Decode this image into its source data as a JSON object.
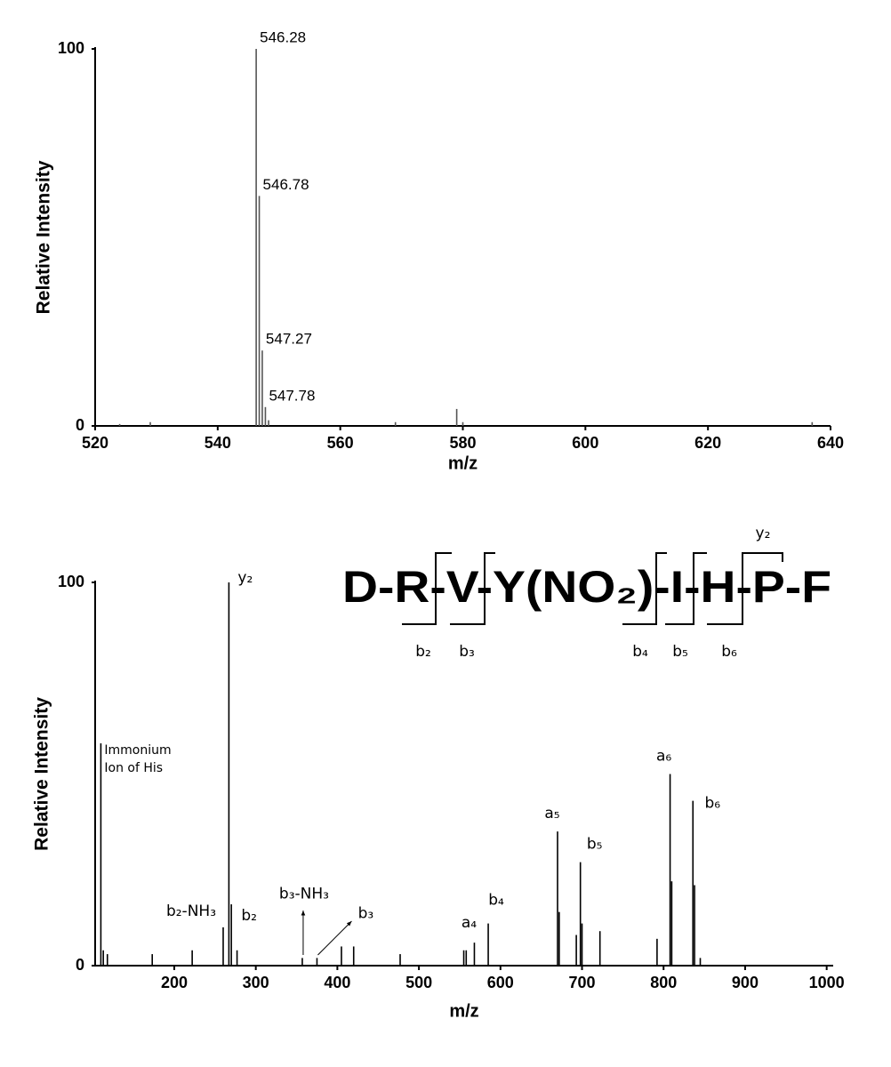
{
  "chart_data": [
    {
      "type": "stem",
      "ylabel": "Relative Intensity",
      "xlabel": "m/z",
      "color": "#555555",
      "x": [
        524,
        529,
        546.28,
        546.78,
        547.27,
        547.78,
        548.3,
        569,
        579,
        580,
        637
      ],
      "values": [
        0.5,
        1,
        100,
        61,
        20,
        5,
        1.5,
        1,
        4.5,
        1,
        1
      ],
      "peak_labels": [
        null,
        null,
        "546.28",
        "546.78",
        "547.27",
        "547.78",
        null,
        null,
        null,
        null,
        null
      ],
      "xlim": [
        520,
        640
      ],
      "xticks": [
        520,
        540,
        560,
        580,
        600,
        620,
        640
      ],
      "ylim": [
        0,
        100
      ],
      "yticks": [
        0,
        100
      ]
    },
    {
      "type": "stem",
      "ylabel": "Relative Intensity",
      "xlabel": "m/z",
      "color": "#000000",
      "x": [
        110,
        113,
        118,
        173,
        222,
        260,
        267,
        270,
        277,
        357,
        375,
        405,
        420,
        477,
        555,
        558,
        568,
        585,
        670,
        672,
        693,
        698,
        700,
        722,
        792,
        808,
        810,
        836,
        838,
        845
      ],
      "values": [
        58,
        4,
        3,
        3,
        4,
        10,
        100,
        16,
        4,
        2,
        2,
        5,
        5,
        3,
        4,
        4,
        6,
        11,
        35,
        14,
        8,
        27,
        11,
        9,
        7,
        50,
        22,
        43,
        21,
        2
      ],
      "peak_labels": [
        [
          "Immonium",
          "Ion of His"
        ],
        null,
        null,
        null,
        null,
        "b₂-NH₃",
        "y₂",
        "b₂",
        null,
        "b₃-NH₃",
        "b₃",
        null,
        null,
        null,
        null,
        null,
        "a₄",
        "b₄",
        "a₅",
        null,
        null,
        "b₅",
        null,
        null,
        null,
        "a₆",
        null,
        "b₆",
        null,
        null
      ],
      "xlim": [
        103,
        1008
      ],
      "xticks": [
        200,
        300,
        400,
        500,
        600,
        700,
        800,
        900,
        1000
      ],
      "ylim": [
        0,
        100
      ],
      "yticks": [
        0,
        100
      ],
      "sequence": "D-R-V-Y(NO₂)-I-H-P-F",
      "fragment_labels": [
        "b₂",
        "b₃",
        "b₄",
        "b₅",
        "b₆",
        "y₂"
      ]
    }
  ]
}
